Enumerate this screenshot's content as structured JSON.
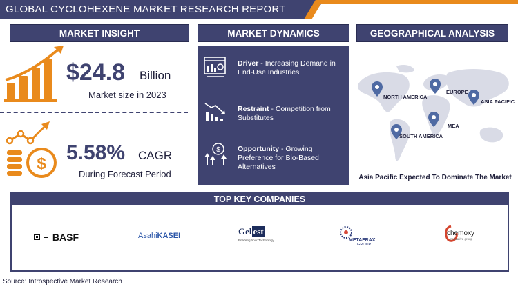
{
  "header": {
    "title": "GLOBAL CYCLOHEXENE MARKET RESEARCH REPORT"
  },
  "insight": {
    "heading": "MARKET INSIGHT",
    "market_value": "$24.8",
    "market_unit": "Billion",
    "market_caption": "Market size in 2023",
    "cagr_value": "5.58%",
    "cagr_unit": "CAGR",
    "cagr_caption": "During Forecast Period"
  },
  "dynamics": {
    "heading": "MARKET DYNAMICS",
    "items": [
      {
        "title": "Driver",
        "text": " - Increasing Demand in End-Use Industries"
      },
      {
        "title": "Restraint",
        "text": " - Competition from Substitutes"
      },
      {
        "title": "Opportunity",
        "text": " - Growing Preference for Bio-Based Alternatives"
      }
    ]
  },
  "geography": {
    "heading": "GEOGRAPHICAL ANALYSIS",
    "regions": [
      "NORTH AMERICA",
      "EUROPE",
      "ASIA PACIFIC",
      "MEA",
      "SOUTH AMERICA"
    ],
    "footer": "Asia Pacific Expected To Dominate The Market"
  },
  "companies": {
    "heading": "TOP KEY COMPANIES",
    "basf": "BASF",
    "asahi_a": "Asahi",
    "asahi_b": "KASEI",
    "gelest_a": "Gel",
    "gelest_b": "est",
    "gelest_tag": "Enabling Your Technology",
    "metafrax": "METAFRAX",
    "metafrax_sub": "GROUP",
    "chemoxy": "chemoxy",
    "chemoxy_sub": "innovative group"
  },
  "source": "Source: Introspective Market Research",
  "colors": {
    "navy": "#3f4370",
    "orange": "#e98a1c"
  }
}
